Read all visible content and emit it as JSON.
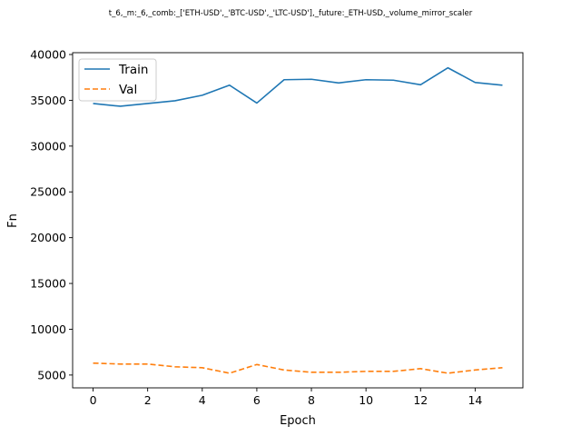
{
  "chart_data": {
    "type": "line",
    "title": "t_6,_m:_6,_comb:_['ETH-USD',_'BTC-USD',_'LTC-USD'],_future:_ETH-USD,_volume_mirror_scaler",
    "xlabel": "Epoch",
    "ylabel": "Fn",
    "x": [
      0,
      1,
      2,
      3,
      4,
      5,
      6,
      7,
      8,
      9,
      10,
      11,
      12,
      13,
      14,
      15
    ],
    "xlim": [
      -0.75,
      15.75
    ],
    "ylim": [
      3600,
      40200
    ],
    "xticks": [
      0,
      2,
      4,
      6,
      8,
      10,
      12,
      14
    ],
    "yticks": [
      5000,
      10000,
      15000,
      20000,
      25000,
      30000,
      35000,
      40000
    ],
    "grid": false,
    "legend_position": "upper-left",
    "series": [
      {
        "name": "Train",
        "color": "#1f77b4",
        "style": "solid",
        "values": [
          34650,
          34350,
          34650,
          34950,
          35550,
          36650,
          34700,
          37250,
          37300,
          36900,
          37250,
          37200,
          36700,
          38550,
          36950,
          36650
        ]
      },
      {
        "name": "Val",
        "color": "#ff7f0e",
        "style": "dashed",
        "values": [
          6300,
          6200,
          6200,
          5900,
          5800,
          5200,
          6150,
          5550,
          5300,
          5300,
          5400,
          5400,
          5700,
          5200,
          5550,
          5800
        ]
      }
    ]
  }
}
